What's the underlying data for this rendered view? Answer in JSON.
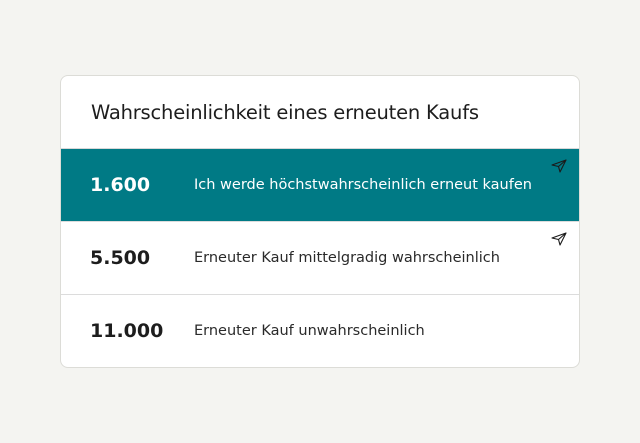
{
  "card": {
    "title": "Wahrscheinlichkeit eines erneuten Kaufs",
    "rows": [
      {
        "value": "1.600",
        "label": "Ich werde höchstwahrscheinlich erneut kaufen",
        "selected": true,
        "icon": "send-icon"
      },
      {
        "value": "5.500",
        "label": "Erneuter Kauf mittelgradig wahrscheinlich",
        "selected": false,
        "icon": "send-icon"
      },
      {
        "value": "11.000",
        "label": "Erneuter Kauf unwahrscheinlich",
        "selected": false
      }
    ]
  },
  "colors": {
    "accent": "#007a85",
    "background": "#f4f4f1"
  }
}
